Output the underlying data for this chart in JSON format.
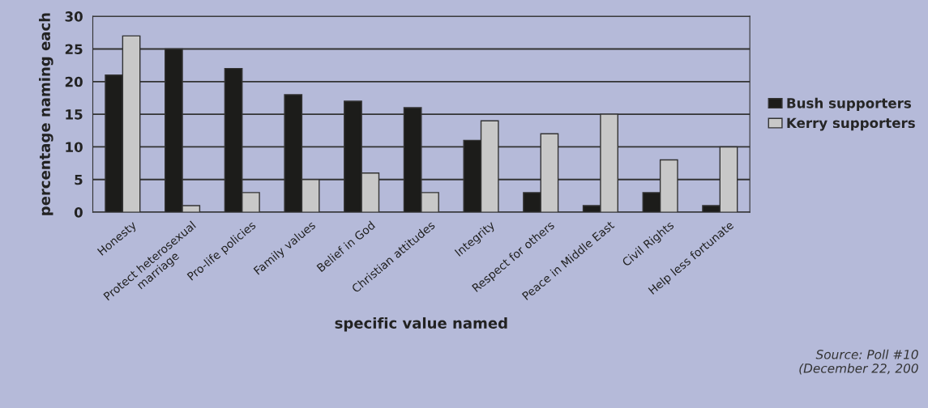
{
  "chart_data": {
    "type": "bar",
    "xlabel": "specific value named",
    "ylabel": "percentage naming each",
    "categories": [
      "Honesty",
      "Protect heterosexual\nmarriage",
      "Pro-life policies",
      "Family values",
      "Belief in God",
      "Christian attitudes",
      "Integrity",
      "Respect for others",
      "Peace in Middle East",
      "Civil Rights",
      "Help less fortunate"
    ],
    "series": [
      {
        "name": "Bush supporters",
        "color": "#1c1c1a",
        "values": [
          21,
          25,
          22,
          18,
          17,
          16,
          11,
          3,
          1,
          3,
          1
        ]
      },
      {
        "name": "Kerry supporters",
        "color": "#c8c8c8",
        "values": [
          27,
          1,
          3,
          5,
          6,
          3,
          14,
          12,
          15,
          8,
          10
        ]
      }
    ],
    "ylim": [
      0,
      30
    ],
    "yticks": [
      0,
      5,
      10,
      15,
      20,
      25,
      30
    ],
    "grid": "y",
    "legend": "right",
    "annotations": [
      "Source: Poll #10\n(December 22, 200"
    ]
  }
}
